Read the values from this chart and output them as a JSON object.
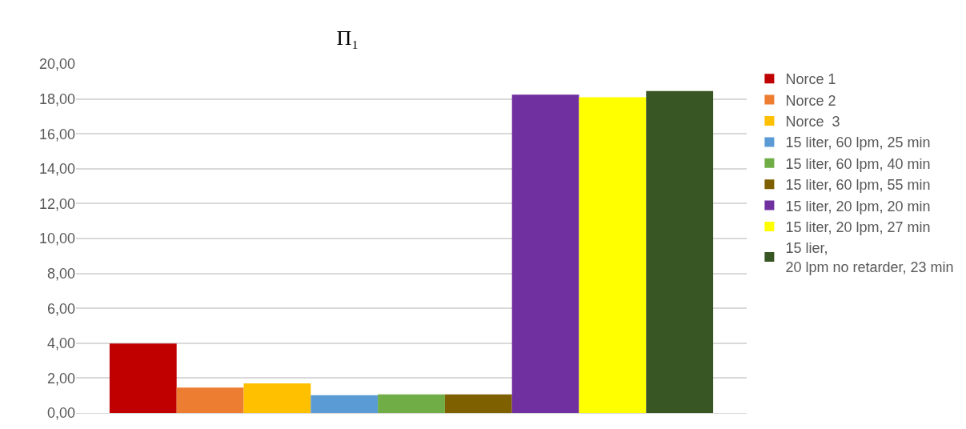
{
  "chart_data": {
    "type": "bar",
    "title": "Π₁",
    "categories": [
      null
    ],
    "series": [
      {
        "name": "Norce 1",
        "color": "#c00000",
        "values": [
          3.98
        ]
      },
      {
        "name": "Norce 2",
        "color": "#ed7d31",
        "values": [
          1.46
        ]
      },
      {
        "name": "Norce  3",
        "color": "#ffc000",
        "values": [
          1.7
        ]
      },
      {
        "name": "15 liter, 60 lpm, 25 min",
        "color": "#5b9bd5",
        "values": [
          1.02
        ]
      },
      {
        "name": "15 liter, 60 lpm, 40 min",
        "color": "#70ad47",
        "values": [
          1.07
        ]
      },
      {
        "name": "15 liter, 60 lpm, 55 min",
        "color": "#7f6000",
        "values": [
          1.07
        ]
      },
      {
        "name": "15 liter, 20 lpm, 20 min",
        "color": "#7030a0",
        "values": [
          18.25
        ]
      },
      {
        "name": "15 liter, 20 lpm, 27 min",
        "color": "#ffff00",
        "values": [
          18.1
        ]
      },
      {
        "name": "15 lier, 20 lpm no retarder, 23 min",
        "color": "#375623",
        "values": [
          18.45
        ]
      }
    ],
    "ylim": [
      0,
      20
    ],
    "yticks": [
      {
        "value": 0,
        "label": "0,00"
      },
      {
        "value": 2,
        "label": "2,00"
      },
      {
        "value": 4,
        "label": "4,00"
      },
      {
        "value": 6,
        "label": "6,00"
      },
      {
        "value": 8,
        "label": "8,00"
      },
      {
        "value": 10,
        "label": "10,00"
      },
      {
        "value": 12,
        "label": "12,00"
      },
      {
        "value": 14,
        "label": "14,00"
      },
      {
        "value": 16,
        "label": "16,00"
      },
      {
        "value": 18,
        "label": "18,00"
      },
      {
        "value": 20,
        "label": "20,00"
      }
    ],
    "grid": "y",
    "legend": "right"
  }
}
